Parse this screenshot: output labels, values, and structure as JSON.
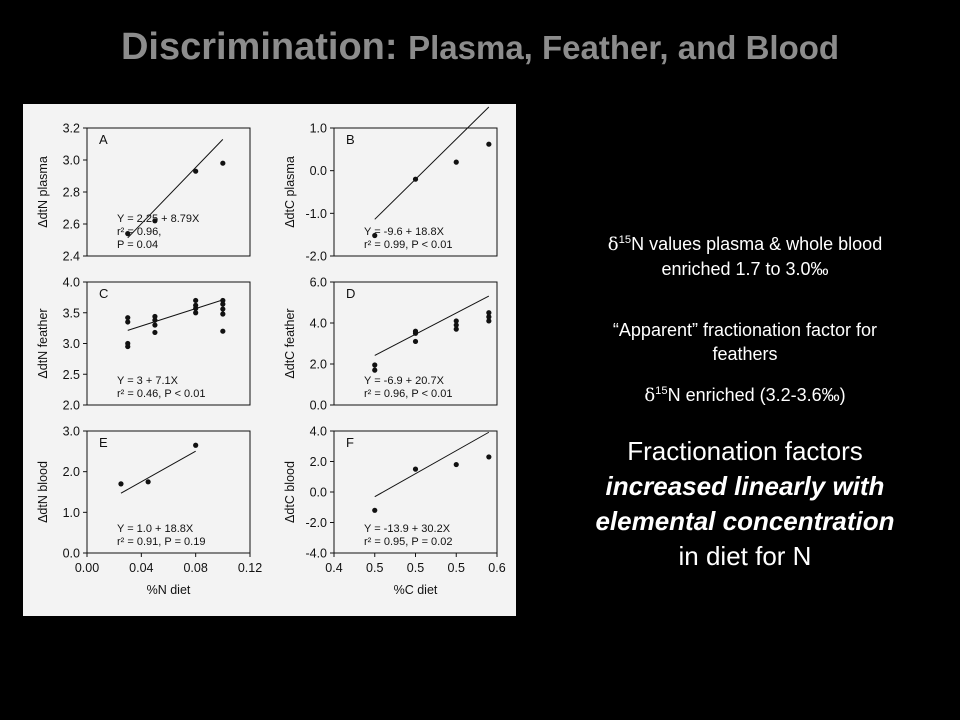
{
  "slide": {
    "title_main": "Discrimination: ",
    "title_rest": "Plasma, Feather, and Blood",
    "note1": {
      "symbol": "δ",
      "sup": "15",
      "line1": "N values plasma & whole blood",
      "line2": "enriched 1.7 to 3.0‰"
    },
    "note2": {
      "line1": "“Apparent” fractionation factor for",
      "line2": "feathers"
    },
    "note3": {
      "symbol": "δ",
      "sup": "15",
      "text": "N  enriched (3.2-3.6‰)"
    },
    "conclusion": {
      "line1": "Fractionation factors",
      "line2": "increased linearly with",
      "line3": "elemental concentration",
      "line4": "in diet for N"
    }
  },
  "chart_data": [
    {
      "panel": "A",
      "type": "scatter",
      "xlabel": "",
      "ylabel": "ΔdtN plasma",
      "xlim": [
        0.0,
        0.12
      ],
      "ylim": [
        2.4,
        3.2
      ],
      "yticks": [
        "2.4",
        "2.6",
        "2.8",
        "3.0",
        "3.2"
      ],
      "points": [
        [
          0.03,
          2.54
        ],
        [
          0.05,
          2.62
        ],
        [
          0.08,
          2.93
        ],
        [
          0.1,
          2.98
        ]
      ],
      "fit": {
        "intercept": 2.25,
        "slope": 8.79,
        "x_range": [
          0.03,
          0.1
        ]
      },
      "annotation": [
        "Y = 2.25 + 8.79X",
        "r² = 0.96,",
        "P = 0.04"
      ]
    },
    {
      "panel": "B",
      "type": "scatter",
      "xlabel": "",
      "ylabel": "ΔdtC plasma",
      "xlim": [
        0.4,
        0.6
      ],
      "ylim": [
        -2.0,
        1.0
      ],
      "yticks": [
        "-2.0",
        "-1.0",
        "0.0",
        "1.0"
      ],
      "points": [
        [
          0.45,
          -1.52
        ],
        [
          0.5,
          -0.2
        ],
        [
          0.55,
          0.2
        ],
        [
          0.59,
          0.62
        ]
      ],
      "fit": {
        "intercept": -9.6,
        "slope": 18.8,
        "x_range": [
          0.45,
          0.59
        ]
      },
      "annotation": [
        "Y = -9.6 + 18.8X",
        "r² = 0.99, P < 0.01"
      ]
    },
    {
      "panel": "C",
      "type": "scatter",
      "xlabel": "",
      "ylabel": "ΔdtN feather",
      "xlim": [
        0.0,
        0.12
      ],
      "ylim": [
        2.0,
        4.0
      ],
      "yticks": [
        "2.0",
        "2.5",
        "3.0",
        "3.5",
        "4.0"
      ],
      "points": [
        [
          0.03,
          2.95
        ],
        [
          0.03,
          3.0
        ],
        [
          0.03,
          3.35
        ],
        [
          0.03,
          3.42
        ],
        [
          0.05,
          3.18
        ],
        [
          0.05,
          3.3
        ],
        [
          0.05,
          3.38
        ],
        [
          0.05,
          3.44
        ],
        [
          0.08,
          3.5
        ],
        [
          0.08,
          3.57
        ],
        [
          0.08,
          3.62
        ],
        [
          0.08,
          3.7
        ],
        [
          0.1,
          3.2
        ],
        [
          0.1,
          3.48
        ],
        [
          0.1,
          3.56
        ],
        [
          0.1,
          3.64
        ],
        [
          0.1,
          3.7
        ]
      ],
      "fit": {
        "intercept": 3.0,
        "slope": 7.1,
        "x_range": [
          0.03,
          0.1
        ]
      },
      "annotation": [
        "Y = 3 + 7.1X",
        "r² = 0.46, P < 0.01"
      ]
    },
    {
      "panel": "D",
      "type": "scatter",
      "xlabel": "",
      "ylabel": "ΔdtC feather",
      "xlim": [
        0.4,
        0.6
      ],
      "ylim": [
        0.0,
        6.0
      ],
      "yticks": [
        "0.0",
        "2.0",
        "4.0",
        "6.0"
      ],
      "points": [
        [
          0.45,
          1.7
        ],
        [
          0.45,
          1.95
        ],
        [
          0.5,
          3.1
        ],
        [
          0.5,
          3.5
        ],
        [
          0.5,
          3.6
        ],
        [
          0.55,
          3.7
        ],
        [
          0.55,
          3.9
        ],
        [
          0.55,
          4.1
        ],
        [
          0.59,
          4.1
        ],
        [
          0.59,
          4.3
        ],
        [
          0.59,
          4.5
        ]
      ],
      "fit": {
        "intercept": -6.9,
        "slope": 20.7,
        "x_range": [
          0.45,
          0.59
        ]
      },
      "annotation": [
        "Y = -6.9 + 20.7X",
        "r² = 0.96, P < 0.01"
      ]
    },
    {
      "panel": "E",
      "type": "scatter",
      "xlabel": "%N diet",
      "ylabel": "ΔdtN blood",
      "xlim": [
        0.0,
        0.12
      ],
      "ylim": [
        0.0,
        3.0
      ],
      "yticks": [
        "0.0",
        "1.0",
        "2.0",
        "3.0"
      ],
      "xticks": [
        "0.00",
        "0.04",
        "0.08",
        "0.12"
      ],
      "points": [
        [
          0.025,
          1.7
        ],
        [
          0.045,
          1.75
        ],
        [
          0.08,
          2.65
        ]
      ],
      "fit": {
        "intercept": 1.0,
        "slope": 18.8,
        "x_range": [
          0.025,
          0.08
        ]
      },
      "annotation": [
        "Y = 1.0 + 18.8X",
        "r² = 0.91, P = 0.19"
      ]
    },
    {
      "panel": "F",
      "type": "scatter",
      "xlabel": "%C diet",
      "ylabel": "ΔdtC blood",
      "xlim": [
        0.4,
        0.6
      ],
      "ylim": [
        -4.0,
        4.0
      ],
      "yticks": [
        "-4.0",
        "-2.0",
        "0.0",
        "2.0",
        "4.0"
      ],
      "xticks": [
        "0.4",
        "0.5",
        "0.5",
        "0.5",
        "0.6"
      ],
      "points": [
        [
          0.45,
          -1.2
        ],
        [
          0.5,
          1.5
        ],
        [
          0.55,
          1.8
        ],
        [
          0.59,
          2.3
        ]
      ],
      "fit": {
        "intercept": -13.9,
        "slope": 30.2,
        "x_range": [
          0.45,
          0.59
        ]
      },
      "annotation": [
        "Y = -13.9 + 30.2X",
        "r² = 0.95, P = 0.02"
      ]
    }
  ]
}
